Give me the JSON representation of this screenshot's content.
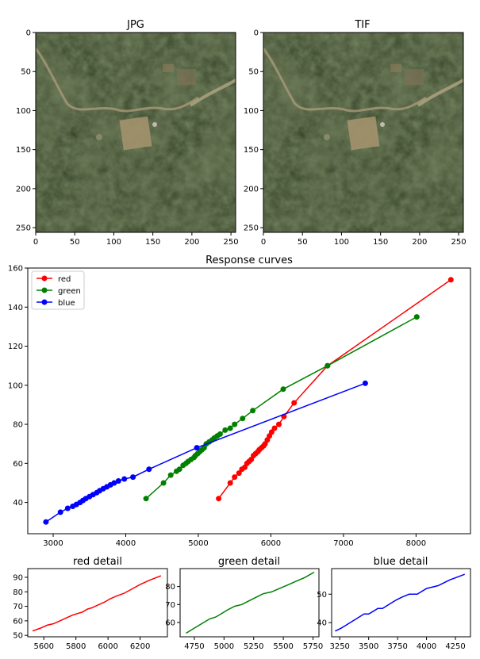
{
  "chart_data": [
    {
      "type": "image",
      "title": "JPG",
      "xticks": [
        "0",
        "50",
        "100",
        "150",
        "200",
        "250"
      ],
      "yticks": [
        "0",
        "50",
        "100",
        "150",
        "200",
        "250"
      ],
      "xlim": [
        0,
        256
      ],
      "ylim": [
        256,
        0
      ]
    },
    {
      "type": "image",
      "title": "TIF",
      "xticks": [
        "0",
        "50",
        "100",
        "150",
        "200",
        "250"
      ],
      "yticks": [
        "0",
        "50",
        "100",
        "150",
        "200",
        "250"
      ],
      "xlim": [
        0,
        256
      ],
      "ylim": [
        256,
        0
      ]
    },
    {
      "type": "line",
      "title": "Response curves",
      "xlim": [
        2650,
        8750
      ],
      "ylim": [
        24,
        160
      ],
      "xticks": [
        3000,
        4000,
        5000,
        6000,
        7000,
        8000
      ],
      "yticks": [
        40,
        60,
        80,
        100,
        120,
        140,
        160
      ],
      "legend_position": "top-left",
      "series": [
        {
          "name": "red",
          "color": "#ff0000",
          "x": [
            5280,
            5440,
            5500,
            5560,
            5600,
            5640,
            5670,
            5700,
            5730,
            5760,
            5790,
            5820,
            5840,
            5870,
            5900,
            5920,
            5950,
            5980,
            6010,
            6050,
            6110,
            6180,
            6320,
            6780,
            8480
          ],
          "y": [
            42,
            50,
            53,
            55,
            57,
            58,
            60,
            61,
            62,
            64,
            65,
            66,
            67,
            68,
            69,
            70,
            72,
            74,
            76,
            78,
            80,
            84,
            91,
            110,
            154
          ]
        },
        {
          "name": "green",
          "color": "#008000",
          "x": [
            4280,
            4520,
            4620,
            4700,
            4740,
            4790,
            4830,
            4860,
            4900,
            4940,
            4960,
            4990,
            5020,
            5050,
            5080,
            5110,
            5150,
            5190,
            5220,
            5260,
            5300,
            5370,
            5440,
            5500,
            5610,
            5750,
            6170,
            6780,
            8010
          ],
          "y": [
            42,
            50,
            54,
            56,
            57,
            59,
            60,
            61,
            62,
            63,
            64,
            65,
            66,
            67,
            68,
            70,
            71,
            72,
            73,
            74,
            75,
            77,
            78,
            80,
            83,
            87,
            98,
            110,
            135
          ]
        },
        {
          "name": "blue",
          "color": "#0000ff",
          "x": [
            2900,
            3100,
            3200,
            3270,
            3320,
            3370,
            3410,
            3450,
            3500,
            3550,
            3600,
            3640,
            3690,
            3740,
            3790,
            3840,
            3900,
            3980,
            4100,
            4320,
            4980,
            7300
          ],
          "y": [
            30,
            35,
            37,
            38,
            39,
            40,
            41,
            42,
            43,
            44,
            45,
            46,
            47,
            48,
            49,
            50,
            51,
            52,
            53,
            57,
            68,
            101
          ]
        }
      ]
    },
    {
      "type": "line",
      "title": "red detail",
      "xlim": [
        5500,
        6370
      ],
      "ylim": [
        49,
        96
      ],
      "xticks": [
        5600,
        5800,
        6000,
        6200
      ],
      "yticks": [
        50,
        60,
        70,
        80,
        90
      ],
      "series": [
        {
          "color": "#ff0000",
          "x": [
            5530,
            5580,
            5620,
            5660,
            5700,
            5740,
            5780,
            5810,
            5840,
            5870,
            5900,
            5940,
            5980,
            6010,
            6050,
            6100,
            6150,
            6200,
            6260,
            6330
          ],
          "y": [
            53,
            55,
            57,
            58,
            60,
            62,
            64,
            65,
            66,
            68,
            69,
            71,
            73,
            75,
            77,
            79,
            82,
            85,
            88,
            91
          ]
        }
      ]
    },
    {
      "type": "line",
      "title": "green detail",
      "xlim": [
        4630,
        5800
      ],
      "ylim": [
        52,
        90
      ],
      "xticks": [
        4750,
        5000,
        5250,
        5500,
        5750
      ],
      "yticks": [
        60,
        70,
        80
      ],
      "series": [
        {
          "color": "#008000",
          "x": [
            4680,
            4730,
            4780,
            4830,
            4880,
            4930,
            4980,
            5030,
            5090,
            5150,
            5210,
            5270,
            5330,
            5400,
            5470,
            5540,
            5610,
            5680,
            5760
          ],
          "y": [
            54,
            56,
            58,
            60,
            62,
            63,
            65,
            67,
            69,
            70,
            72,
            74,
            76,
            77,
            79,
            81,
            83,
            85,
            88
          ]
        }
      ]
    },
    {
      "type": "line",
      "title": "blue detail",
      "xlim": [
        3180,
        4380
      ],
      "ylim": [
        35,
        59
      ],
      "xticks": [
        3250,
        3500,
        3750,
        4000,
        4250
      ],
      "yticks": [
        40,
        50
      ],
      "series": [
        {
          "color": "#0000ff",
          "x": [
            3210,
            3260,
            3300,
            3340,
            3380,
            3420,
            3460,
            3500,
            3540,
            3580,
            3620,
            3660,
            3700,
            3740,
            3790,
            3850,
            3920,
            4000,
            4100,
            4200,
            4330
          ],
          "y": [
            37,
            38,
            39,
            40,
            41,
            42,
            43,
            43,
            44,
            45,
            45,
            46,
            47,
            48,
            49,
            50,
            50,
            52,
            53,
            55,
            57
          ]
        }
      ]
    }
  ]
}
